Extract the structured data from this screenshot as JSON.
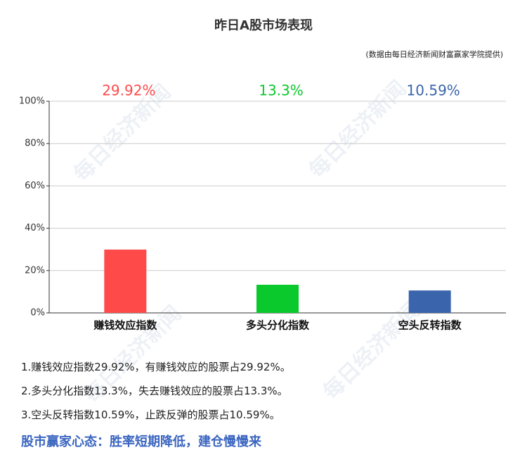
{
  "chart_data": {
    "type": "bar",
    "title": "昨日A股市场表现",
    "subtitle": "(数据由每日经济新闻财富赢家学院提供)",
    "categories": [
      "赚钱效应指数",
      "多头分化指数",
      "空头反转指数"
    ],
    "values": [
      29.92,
      13.3,
      10.59
    ],
    "value_labels": [
      "29.92%",
      "13.3%",
      "10.59%"
    ],
    "colors": [
      "#ff4a4a",
      "#0ac92c",
      "#3a64ac"
    ],
    "ylim": [
      0,
      100
    ],
    "yticks": [
      {
        "value": 0,
        "label": "0%"
      },
      {
        "value": 20,
        "label": "20%"
      },
      {
        "value": 40,
        "label": "40%"
      },
      {
        "value": 60,
        "label": "60%"
      },
      {
        "value": 80,
        "label": "80%"
      },
      {
        "value": 100,
        "label": "100%"
      }
    ],
    "grid": true
  },
  "watermark": "每日经济新闻",
  "notes": [
    "1.赚钱效应指数29.92%，有赚钱效应的股票占29.92%。",
    "2.多头分化指数13.3%，失去赚钱效应的股票占13.3%。",
    "3.空头反转指数10.59%，止跌反弹的股票占10.59%。"
  ],
  "footer": "股市赢家心态：胜率短期降低，建仓慢慢来"
}
